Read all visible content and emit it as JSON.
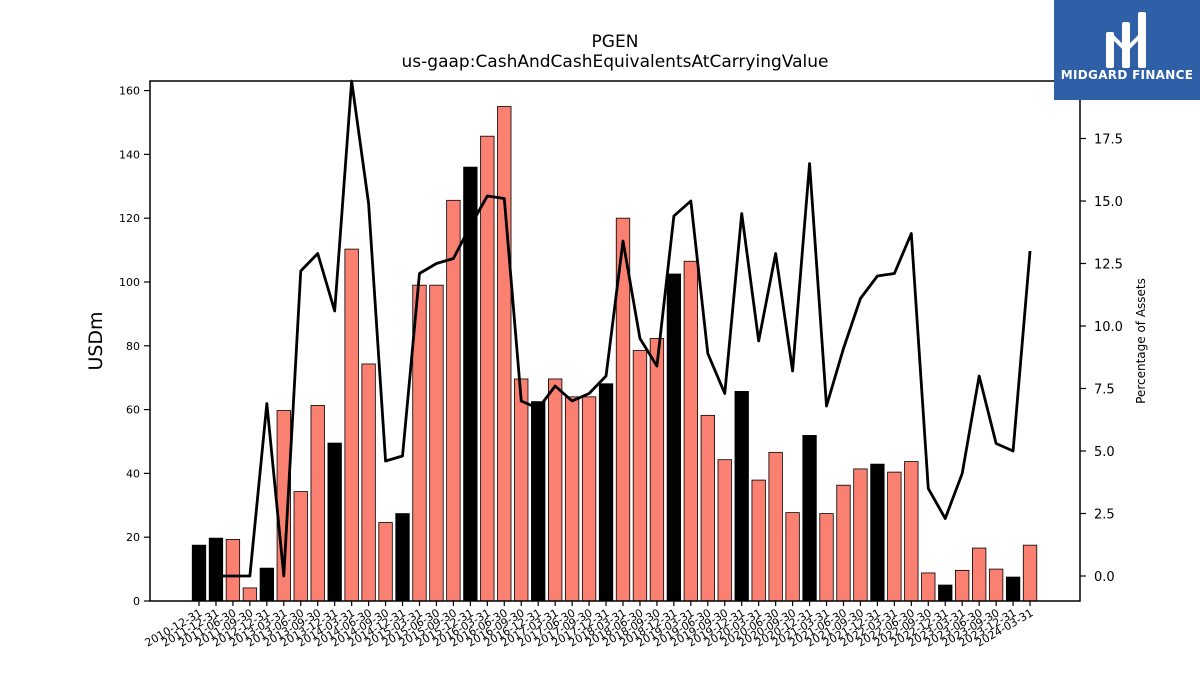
{
  "chart_data": {
    "type": "bar",
    "title": "PGEN",
    "subtitle": "us-gaap:CashAndCashEquivalentsAtCarryingValue",
    "ylabel": "USDm",
    "y2label": "Percentage of Assets",
    "ylim": [
      0,
      163
    ],
    "y2lim": [
      -1,
      19.8
    ],
    "yticks": [
      0,
      20,
      40,
      60,
      80,
      100,
      120,
      140,
      160
    ],
    "y2ticks": [
      "0.0",
      "2.5",
      "5.0",
      "7.5",
      "10.0",
      "12.5",
      "15.0",
      "17.5"
    ],
    "categories": [
      "2010-12-31",
      "2011-12-31",
      "2011-06-30",
      "2011-09-30",
      "2012-12-31",
      "2013-03-31",
      "2013-06-30",
      "2013-09-30",
      "2013-12-31",
      "2014-03-31",
      "2014-06-30",
      "2014-09-30",
      "2014-12-31",
      "2015-03-31",
      "2015-06-30",
      "2015-09-30",
      "2015-12-31",
      "2016-03-31",
      "2016-06-30",
      "2016-09-30",
      "2016-12-31",
      "2017-03-31",
      "2017-06-30",
      "2017-09-30",
      "2017-12-31",
      "2018-03-31",
      "2018-06-30",
      "2018-09-30",
      "2018-12-31",
      "2019-03-31",
      "2019-06-30",
      "2019-09-30",
      "2019-12-31",
      "2020-03-31",
      "2020-06-30",
      "2020-09-30",
      "2020-12-31",
      "2021-03-31",
      "2021-06-30",
      "2021-09-30",
      "2021-12-31",
      "2022-03-31",
      "2022-06-30",
      "2022-09-30",
      "2022-12-31",
      "2023-03-31",
      "2023-06-30",
      "2023-09-30",
      "2023-12-31",
      "2024-03-31"
    ],
    "series": [
      {
        "type": "bar",
        "values": [
          17.5,
          19.7,
          19.3,
          4.1,
          10.3,
          59.7,
          34.3,
          61.3,
          49.5,
          110.3,
          74.3,
          24.6,
          27.4,
          99.0,
          99.0,
          125.6,
          136.0,
          145.7,
          155.0,
          69.6,
          62.5,
          69.6,
          64.0,
          64.0,
          68.1,
          120.0,
          78.5,
          82.3,
          102.5,
          106.5,
          58.2,
          44.3,
          65.7,
          37.9,
          46.6,
          27.7,
          51.9,
          27.4,
          36.3,
          41.4,
          42.9,
          40.4,
          43.7,
          8.8,
          5.0,
          9.6,
          16.6,
          10.0,
          7.5,
          17.5
        ],
        "colors": [
          "#000000",
          "#000000",
          "#fa8072",
          "#fa8072",
          "#000000",
          "#fa8072",
          "#fa8072",
          "#fa8072",
          "#000000",
          "#fa8072",
          "#fa8072",
          "#fa8072",
          "#000000",
          "#fa8072",
          "#fa8072",
          "#fa8072",
          "#000000",
          "#fa8072",
          "#fa8072",
          "#fa8072",
          "#000000",
          "#fa8072",
          "#fa8072",
          "#fa8072",
          "#000000",
          "#fa8072",
          "#fa8072",
          "#fa8072",
          "#000000",
          "#fa8072",
          "#fa8072",
          "#fa8072",
          "#000000",
          "#fa8072",
          "#fa8072",
          "#fa8072",
          "#000000",
          "#fa8072",
          "#fa8072",
          "#fa8072",
          "#000000",
          "#fa8072",
          "#fa8072",
          "#fa8072",
          "#000000",
          "#fa8072",
          "#fa8072",
          "#fa8072",
          "#000000",
          "#fa8072"
        ]
      },
      {
        "type": "line",
        "axis": "right",
        "color": "#000000",
        "values": [
          null,
          0.0,
          0.0,
          0.0,
          6.9,
          0.0,
          12.2,
          12.9,
          10.6,
          19.8,
          14.9,
          4.6,
          4.8,
          12.1,
          12.5,
          12.7,
          14.0,
          15.2,
          15.1,
          7.0,
          6.7,
          7.6,
          7.0,
          7.3,
          8.0,
          13.4,
          9.5,
          8.4,
          14.4,
          15.0,
          8.9,
          7.3,
          14.5,
          9.4,
          12.9,
          8.2,
          16.5,
          6.8,
          9.1,
          11.1,
          12.0,
          12.1,
          13.7,
          3.5,
          2.3,
          4.1,
          8.0,
          5.3,
          5.0,
          13.0
        ]
      }
    ],
    "grid": false
  },
  "logo": {
    "text": "MIDGARD FINANCE",
    "color": "#2f5fa6"
  }
}
